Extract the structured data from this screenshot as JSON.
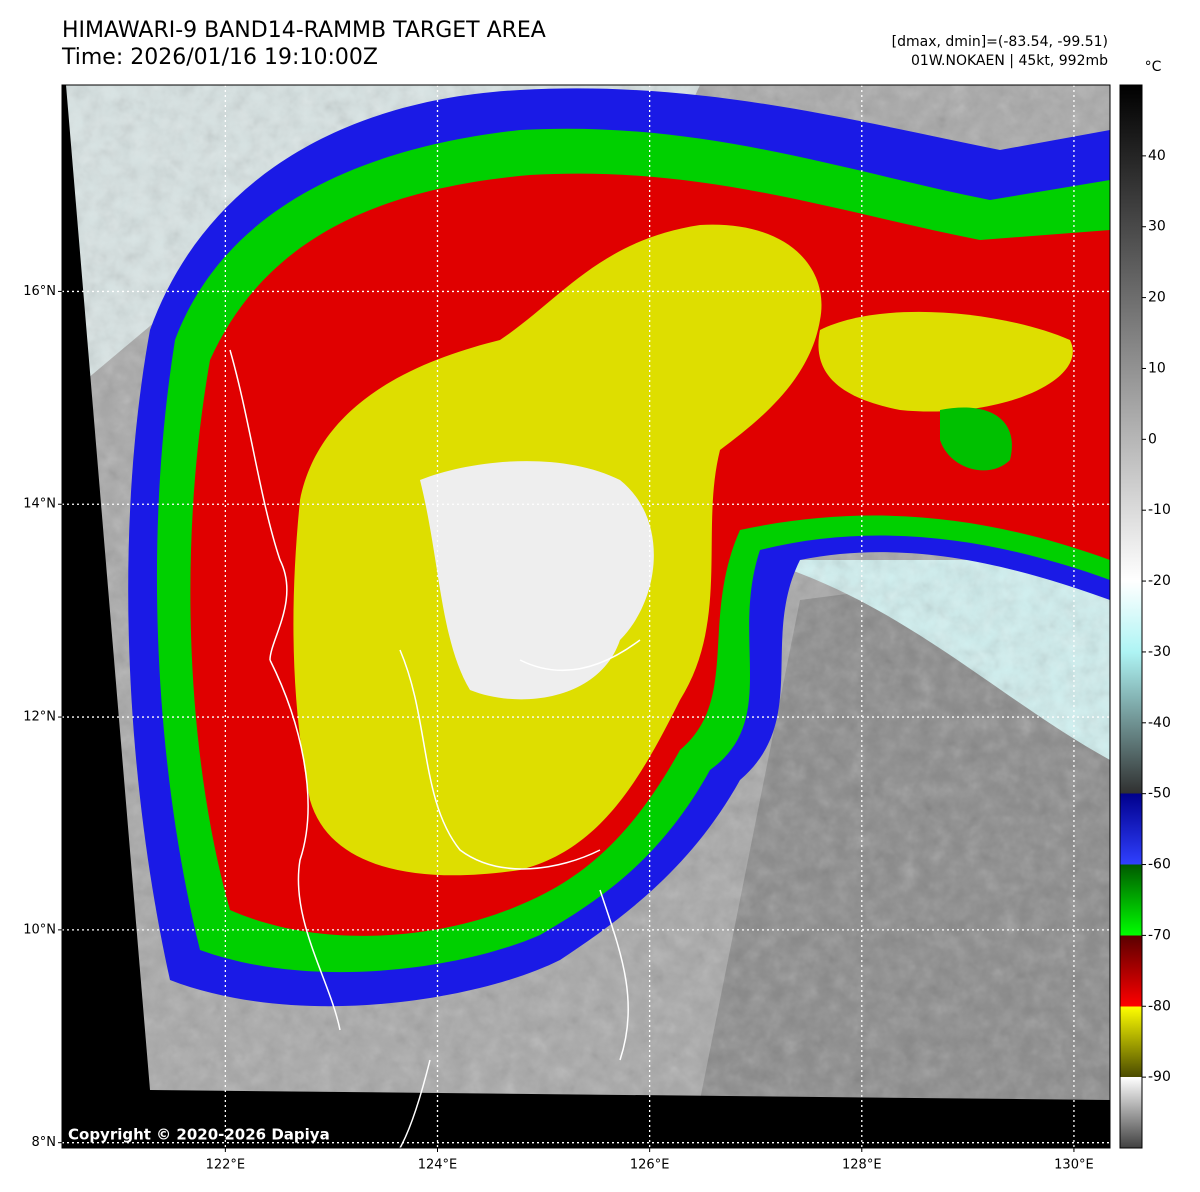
{
  "header": {
    "title": "HIMAWARI-9 BAND14-RAMMB TARGET AREA",
    "time": "Time: 2026/01/16 19:10:00Z",
    "range": "[dmax, dmin]=(-83.54, -99.51)",
    "storm": "01W.NOKAEN | 45kt, 992mb"
  },
  "map": {
    "lonlim": [
      120.46,
      130.34
    ],
    "latlim": [
      7.95,
      17.94
    ],
    "xticks": [
      {
        "value": 122,
        "label": "122°E"
      },
      {
        "value": 124,
        "label": "124°E"
      },
      {
        "value": 126,
        "label": "126°E"
      },
      {
        "value": 128,
        "label": "128°E"
      },
      {
        "value": 130,
        "label": "130°E"
      }
    ],
    "yticks": [
      {
        "value": 8,
        "label": "8°N"
      },
      {
        "value": 10,
        "label": "10°N"
      },
      {
        "value": 12,
        "label": "12°N"
      },
      {
        "value": 14,
        "label": "14°N"
      },
      {
        "value": 16,
        "label": "16°N"
      }
    ],
    "grid": true,
    "copyright": "Copyright © 2020-2026 Dapiya"
  },
  "colorbar": {
    "unit": "°C",
    "lim": [
      -100,
      50
    ],
    "ticks": [
      40,
      30,
      20,
      10,
      0,
      -10,
      -20,
      -30,
      -40,
      -50,
      -60,
      -70,
      -80,
      -90
    ],
    "stops": [
      {
        "value": 50,
        "color": "#000000"
      },
      {
        "value": -20,
        "color": "#ffffff"
      },
      {
        "value": -30,
        "color": "#aef4f4"
      },
      {
        "value": -50,
        "color": "#303030"
      },
      {
        "value": -50,
        "color": "#00008c"
      },
      {
        "value": -60,
        "color": "#3040ff"
      },
      {
        "value": -60,
        "color": "#005a00"
      },
      {
        "value": -70,
        "color": "#00ff00"
      },
      {
        "value": -70,
        "color": "#5a0000"
      },
      {
        "value": -80,
        "color": "#ff0000"
      },
      {
        "value": -80,
        "color": "#ffff00"
      },
      {
        "value": -90,
        "color": "#4a4a00"
      },
      {
        "value": -90,
        "color": "#ffffff"
      },
      {
        "value": -100,
        "color": "#404040"
      }
    ]
  }
}
